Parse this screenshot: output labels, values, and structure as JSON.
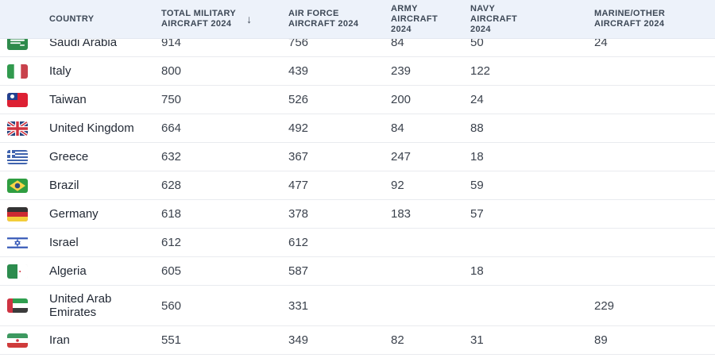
{
  "header": {
    "sort_icon": "↓",
    "columns": [
      {
        "key": "country",
        "label": "COUNTRY"
      },
      {
        "key": "total",
        "label": "TOTAL MILITARY\nAIRCRAFT 2024"
      },
      {
        "key": "air_force",
        "label": "AIR FORCE\nAIRCRAFT 2024"
      },
      {
        "key": "army",
        "label": "ARMY\nAIRCRAFT\n2024"
      },
      {
        "key": "navy",
        "label": "NAVY\nAIRCRAFT\n2024"
      },
      {
        "key": "marine",
        "label": "MARINE/OTHER\nAIRCRAFT 2024"
      }
    ]
  },
  "table": {
    "rows": [
      {
        "country": "Saudi Arabia",
        "flag": "sa",
        "total": "914",
        "air_force": "756",
        "army": "84",
        "navy": "50",
        "marine": "24"
      },
      {
        "country": "Italy",
        "flag": "it",
        "total": "800",
        "air_force": "439",
        "army": "239",
        "navy": "122",
        "marine": ""
      },
      {
        "country": "Taiwan",
        "flag": "tw",
        "total": "750",
        "air_force": "526",
        "army": "200",
        "navy": "24",
        "marine": ""
      },
      {
        "country": "United Kingdom",
        "flag": "gb",
        "total": "664",
        "air_force": "492",
        "army": "84",
        "navy": "88",
        "marine": ""
      },
      {
        "country": "Greece",
        "flag": "gr",
        "total": "632",
        "air_force": "367",
        "army": "247",
        "navy": "18",
        "marine": ""
      },
      {
        "country": "Brazil",
        "flag": "br",
        "total": "628",
        "air_force": "477",
        "army": "92",
        "navy": "59",
        "marine": ""
      },
      {
        "country": "Germany",
        "flag": "de",
        "total": "618",
        "air_force": "378",
        "army": "183",
        "navy": "57",
        "marine": ""
      },
      {
        "country": "Israel",
        "flag": "il",
        "total": "612",
        "air_force": "612",
        "army": "",
        "navy": "",
        "marine": ""
      },
      {
        "country": "Algeria",
        "flag": "dz",
        "total": "605",
        "air_force": "587",
        "army": "",
        "navy": "18",
        "marine": ""
      },
      {
        "country": "United Arab Emirates",
        "flag": "ae",
        "total": "560",
        "air_force": "331",
        "army": "",
        "navy": "",
        "marine": "229"
      },
      {
        "country": "Iran",
        "flag": "ir",
        "total": "551",
        "air_force": "349",
        "army": "82",
        "navy": "31",
        "marine": "89"
      }
    ]
  },
  "colors": {
    "header_bg": "#edf2fa",
    "header_text": "#3d4856",
    "row_border": "#e9ebef",
    "country_text": "#222935",
    "number_text": "#3b424d"
  }
}
